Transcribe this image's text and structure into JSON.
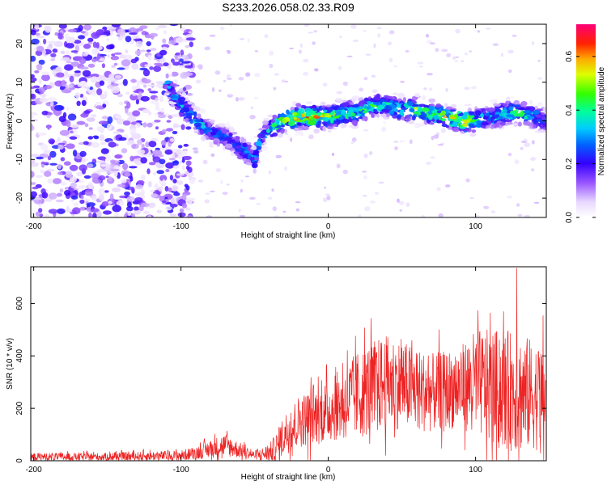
{
  "title": "S233.2026.058.02.33.R09",
  "colors": {
    "snr_line": "#ee2222",
    "frame": "#000000"
  },
  "chart_data": [
    {
      "type": "heatmap",
      "name": "spectrogram",
      "xlabel": "Height of straight line (km)",
      "ylabel": "Frequency (Hz)",
      "xlim": [
        -202,
        148
      ],
      "ylim": [
        -25,
        25
      ],
      "xticks": [
        -200,
        -100,
        0,
        100
      ],
      "yticks": [
        -20,
        -10,
        0,
        10,
        20
      ],
      "ridge": {
        "description": "frequency of peak spectral amplitude vs height",
        "x": [
          -110,
          -100,
          -90,
          -80,
          -70,
          -60,
          -50,
          -45,
          -40,
          -30,
          -20,
          -10,
          0,
          10,
          20,
          30,
          40,
          50,
          60,
          70,
          80,
          90,
          100,
          110,
          120,
          130,
          140,
          148
        ],
        "y": [
          10,
          4,
          0,
          -3,
          -4,
          -7,
          -10,
          -4,
          -2,
          0,
          1,
          1,
          1,
          2,
          2,
          4,
          4,
          3,
          3,
          2,
          1,
          0,
          0,
          1,
          2,
          2,
          1,
          0
        ],
        "peak_amplitude": [
          0.3,
          0.35,
          0.35,
          0.3,
          0.25,
          0.3,
          0.35,
          0.3,
          0.4,
          0.5,
          0.6,
          0.6,
          0.55,
          0.45,
          0.45,
          0.45,
          0.4,
          0.45,
          0.5,
          0.45,
          0.55,
          0.65,
          0.45,
          0.4,
          0.4,
          0.45,
          0.35,
          0.3
        ]
      },
      "noise_region_x": [
        -202,
        -100
      ],
      "colorbar": {
        "label": "Normalized spectral amplitude",
        "range": [
          0.0,
          0.72
        ],
        "ticks": [
          0.0,
          0.2,
          0.4,
          0.6
        ],
        "tick_labels": [
          "0.0",
          "0.2",
          "0.4",
          "0.6"
        ]
      }
    },
    {
      "type": "line",
      "name": "snr",
      "xlabel": "Height of straight line (km)",
      "ylabel": "SNR (10 * v/v)",
      "xlim": [
        -202,
        148
      ],
      "ylim": [
        0,
        740
      ],
      "xticks": [
        -200,
        -100,
        0,
        100
      ],
      "yticks": [
        0,
        200,
        400,
        600
      ],
      "series": [
        {
          "name": "SNR",
          "envelope": {
            "x": [
              -202,
              -150,
              -100,
              -90,
              -80,
              -70,
              -60,
              -50,
              -40,
              -35,
              -30,
              -20,
              -10,
              0,
              10,
              20,
              30,
              40,
              50,
              60,
              70,
              80,
              90,
              100,
              110,
              120,
              130,
              140,
              148
            ],
            "mean": [
              15,
              15,
              20,
              30,
              45,
              60,
              40,
              20,
              30,
              50,
              100,
              150,
              170,
              190,
              220,
              250,
              280,
              300,
              290,
              270,
              260,
              270,
              280,
              300,
              280,
              270,
              260,
              250,
              240
            ],
            "spread": [
              15,
              15,
              20,
              25,
              35,
              45,
              30,
              15,
              35,
              60,
              80,
              100,
              110,
              120,
              140,
              170,
              180,
              180,
              170,
              160,
              150,
              150,
              160,
              200,
              220,
              230,
              230,
              210,
              200
            ]
          },
          "max_peak": {
            "x": 128,
            "y": 735
          }
        }
      ]
    }
  ]
}
